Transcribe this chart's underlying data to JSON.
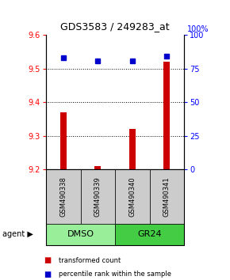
{
  "title": "GDS3583 / 249283_at",
  "samples": [
    "GSM490338",
    "GSM490339",
    "GSM490340",
    "GSM490341"
  ],
  "bar_values": [
    9.37,
    9.21,
    9.32,
    9.52
  ],
  "bar_baseline": 9.2,
  "percentile_values": [
    83,
    81,
    81,
    84
  ],
  "ylim_left": [
    9.2,
    9.6
  ],
  "ylim_right": [
    0,
    100
  ],
  "yticks_left": [
    9.2,
    9.3,
    9.4,
    9.5,
    9.6
  ],
  "yticks_right": [
    0,
    25,
    50,
    75,
    100
  ],
  "bar_color": "#cc0000",
  "percentile_color": "#0000cc",
  "grid_ticks": [
    9.3,
    9.4,
    9.5
  ],
  "dmso_color": "#99ee99",
  "gr24_color": "#44cc44",
  "gray_box_color": "#cccccc",
  "legend_red_label": "transformed count",
  "legend_blue_label": "percentile rank within the sample",
  "agent_label": "agent"
}
